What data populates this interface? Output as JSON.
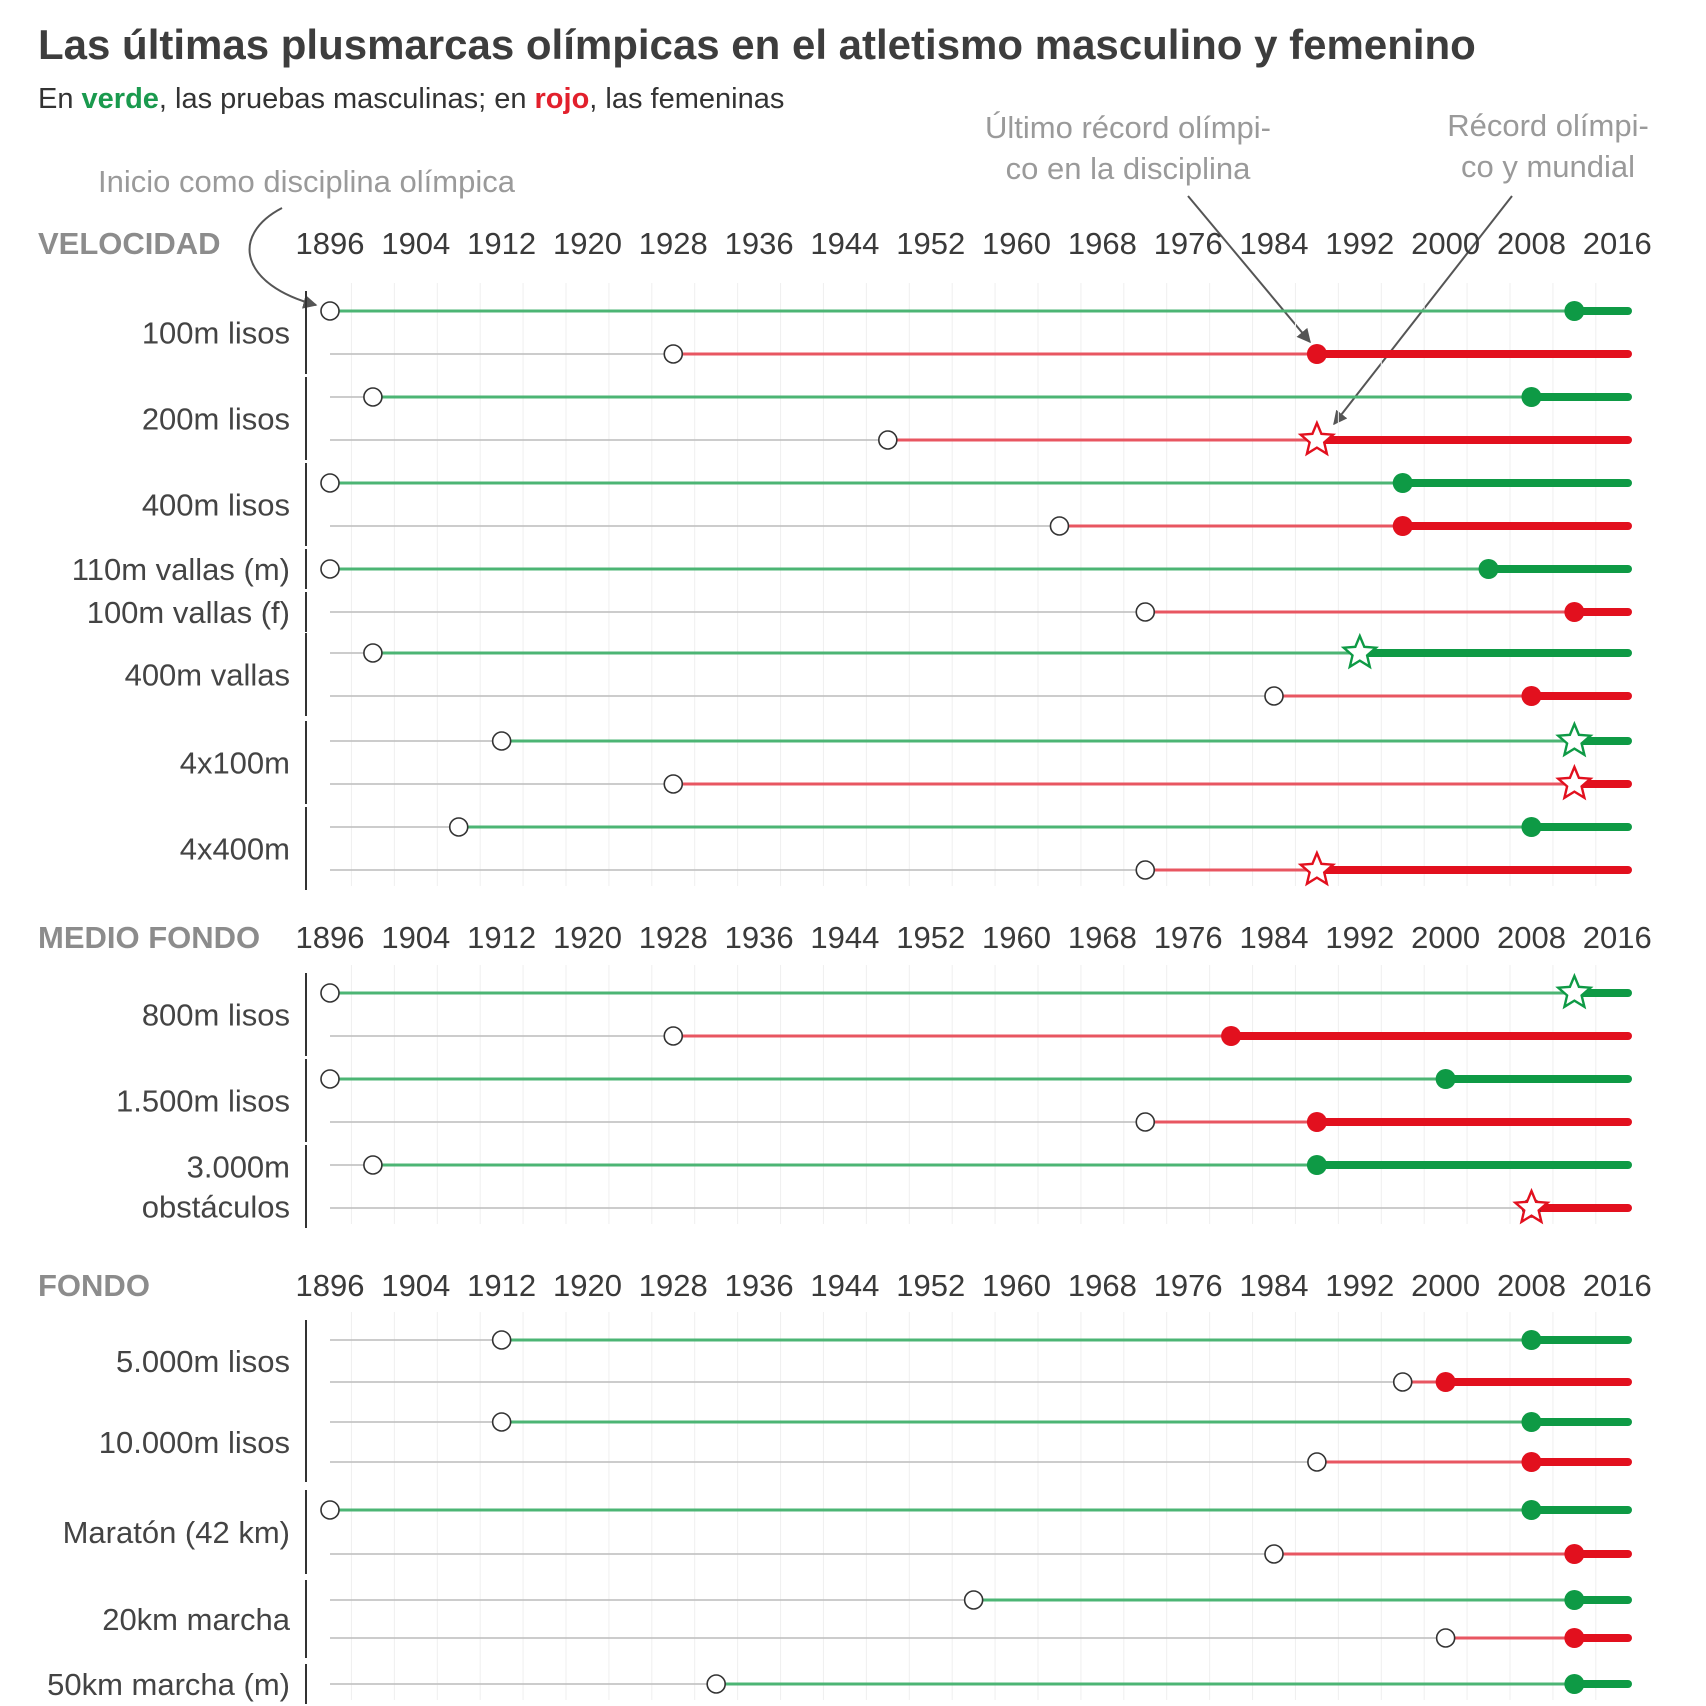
{
  "title": "Las últimas plusmarcas olímpicas en el atletismo masculino y femenino",
  "subtitle": {
    "prefix": "En ",
    "green_word": "verde",
    "middle": ", las pruebas masculinas; en ",
    "red_word": "rojo",
    "suffix": ", las femeninas"
  },
  "colors": {
    "men_line": "#4cb574",
    "men_dot": "#0e9a45",
    "women_line": "#e85661",
    "women_dot": "#e2101e",
    "base": "#bcbcbc"
  },
  "annotations": {
    "inicio": "Inicio como disciplina olímpica",
    "ultimo": [
      "Último récord olímpi-",
      "co en la disciplina"
    ],
    "record": [
      "Récord olímpi-",
      "co y mundial"
    ]
  },
  "chart_data": {
    "type": "timeline",
    "x_ticks": [
      1896,
      1904,
      1912,
      1920,
      1928,
      1936,
      1944,
      1952,
      1960,
      1968,
      1976,
      1984,
      1992,
      2000,
      2008,
      2016
    ],
    "x_range": [
      1896,
      2017
    ],
    "sections": [
      {
        "name": "VELOCIDAD",
        "events": [
          {
            "label": [
              "100m lisos"
            ],
            "rows": [
              {
                "gender": "m",
                "start": 1896,
                "record": 2012,
                "world": false
              },
              {
                "gender": "f",
                "start": 1928,
                "record": 1988,
                "world": false
              }
            ]
          },
          {
            "label": [
              "200m lisos"
            ],
            "rows": [
              {
                "gender": "m",
                "start": 1900,
                "record": 2008,
                "world": false
              },
              {
                "gender": "f",
                "start": 1948,
                "record": 1988,
                "world": true
              }
            ]
          },
          {
            "label": [
              "400m lisos"
            ],
            "rows": [
              {
                "gender": "m",
                "start": 1896,
                "record": 1996,
                "world": false
              },
              {
                "gender": "f",
                "start": 1964,
                "record": 1996,
                "world": false
              }
            ]
          },
          {
            "label": [
              "110m vallas (m)"
            ],
            "rows": [
              {
                "gender": "m",
                "start": 1896,
                "record": 2004,
                "world": false
              }
            ]
          },
          {
            "label": [
              "100m vallas (f)"
            ],
            "rows": [
              {
                "gender": "f",
                "start": 1972,
                "record": 2012,
                "world": false
              }
            ]
          },
          {
            "label": [
              "400m vallas"
            ],
            "rows": [
              {
                "gender": "m",
                "start": 1900,
                "record": 1992,
                "world": true
              },
              {
                "gender": "f",
                "start": 1984,
                "record": 2008,
                "world": false
              }
            ]
          },
          {
            "label": [
              "4x100m"
            ],
            "rows": [
              {
                "gender": "m",
                "start": 1912,
                "record": 2012,
                "world": true
              },
              {
                "gender": "f",
                "start": 1928,
                "record": 2012,
                "world": true
              }
            ]
          },
          {
            "label": [
              "4x400m"
            ],
            "rows": [
              {
                "gender": "m",
                "start": 1908,
                "record": 2008,
                "world": false
              },
              {
                "gender": "f",
                "start": 1972,
                "record": 1988,
                "world": true
              }
            ]
          }
        ]
      },
      {
        "name": "MEDIO FONDO",
        "events": [
          {
            "label": [
              "800m lisos"
            ],
            "rows": [
              {
                "gender": "m",
                "start": 1896,
                "record": 2012,
                "world": true
              },
              {
                "gender": "f",
                "start": 1928,
                "record": 1980,
                "world": false
              }
            ]
          },
          {
            "label": [
              "1.500m lisos"
            ],
            "rows": [
              {
                "gender": "m",
                "start": 1896,
                "record": 2000,
                "world": false
              },
              {
                "gender": "f",
                "start": 1972,
                "record": 1988,
                "world": false
              }
            ]
          },
          {
            "label": [
              "3.000m",
              "obstáculos"
            ],
            "rows": [
              {
                "gender": "m",
                "start": 1900,
                "record": 1988,
                "world": false
              },
              {
                "gender": "f",
                "start": 2008,
                "record": 2008,
                "world": true
              }
            ]
          }
        ]
      },
      {
        "name": "FONDO",
        "events": [
          {
            "label": [
              "5.000m lisos"
            ],
            "rows": [
              {
                "gender": "m",
                "start": 1912,
                "record": 2008,
                "world": false
              },
              {
                "gender": "f",
                "start": 1996,
                "record": 2000,
                "world": false
              }
            ]
          },
          {
            "label": [
              "10.000m lisos"
            ],
            "rows": [
              {
                "gender": "m",
                "start": 1912,
                "record": 2008,
                "world": false
              },
              {
                "gender": "f",
                "start": 1988,
                "record": 2008,
                "world": false
              }
            ]
          },
          {
            "label": [
              "Maratón (42 km)"
            ],
            "rows": [
              {
                "gender": "m",
                "start": 1896,
                "record": 2008,
                "world": false
              },
              {
                "gender": "f",
                "start": 1984,
                "record": 2012,
                "world": false
              }
            ]
          },
          {
            "label": [
              "20km marcha"
            ],
            "rows": [
              {
                "gender": "m",
                "start": 1956,
                "record": 2012,
                "world": false
              },
              {
                "gender": "f",
                "start": 2000,
                "record": 2012,
                "world": false
              }
            ]
          },
          {
            "label": [
              "50km marcha (m)"
            ],
            "rows": [
              {
                "gender": "m",
                "start": 1932,
                "record": 2012,
                "world": false
              }
            ]
          }
        ]
      }
    ]
  }
}
